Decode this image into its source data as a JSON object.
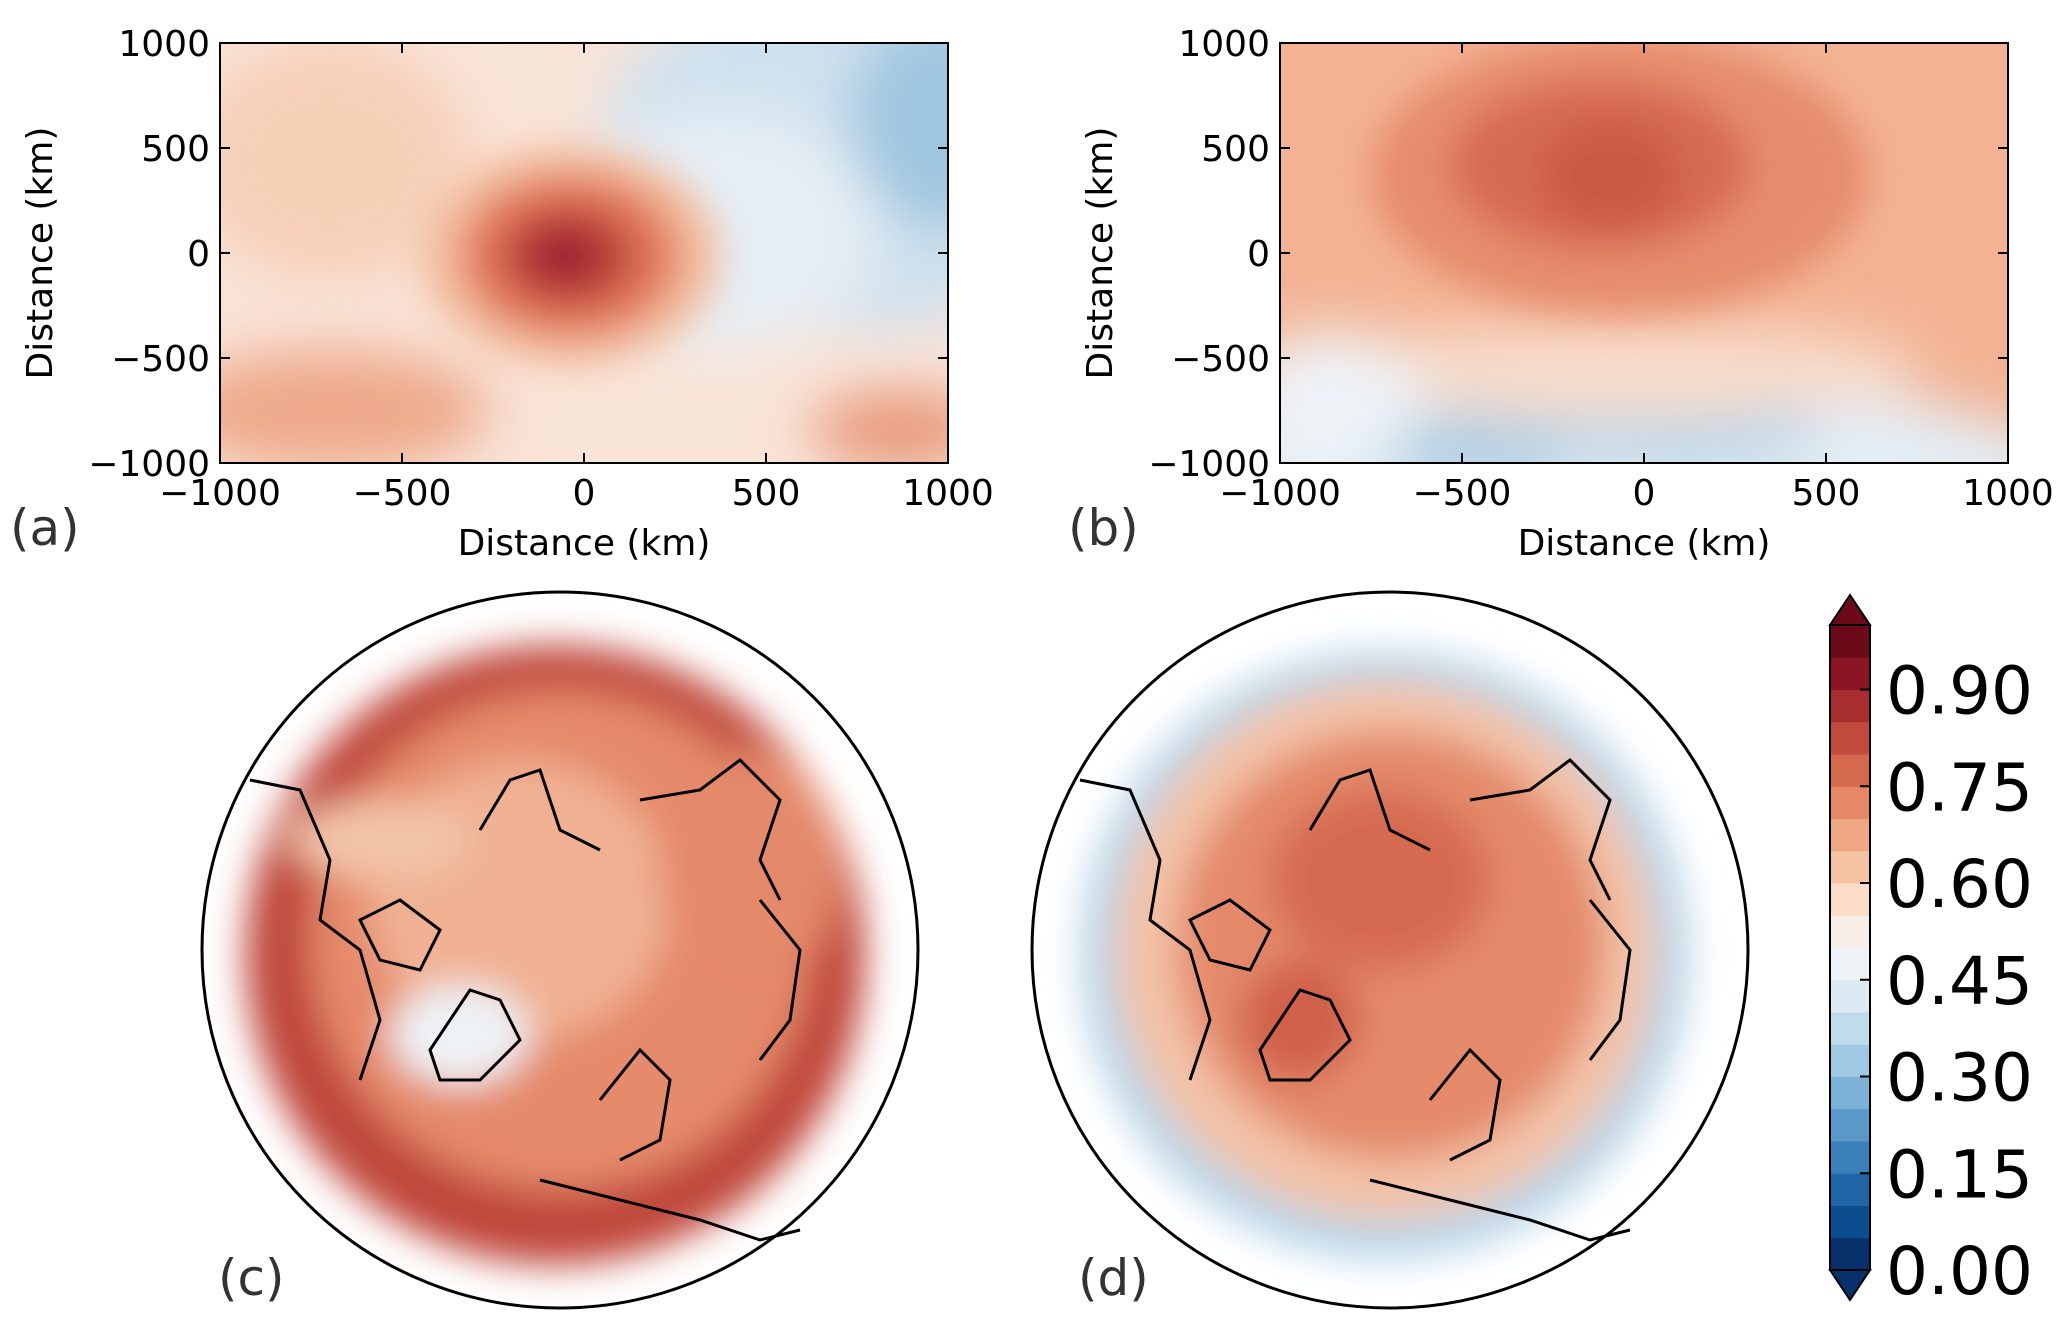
{
  "chart_data": [
    {
      "type": "heatmap",
      "panel_label": "(a)",
      "xlabel": "Distance (km)",
      "ylabel": "Distance (km)",
      "xlim": [
        -1000,
        1000
      ],
      "ylim": [
        -1000,
        1000
      ],
      "xticks": [
        "−1000",
        "−500",
        "0",
        "500",
        "1000"
      ],
      "yticks": [
        "1000",
        "500",
        "0",
        "−500",
        "−1000"
      ],
      "grid": false,
      "pattern": "Strong maximum centered near (-50, 0) km with value above 0.90, ring decreasing outward to about 0.55; weak values (0.40-0.45) toward upper right; moderate 0.60-0.70 along bottom edge",
      "peak": {
        "x": -50,
        "y": 0,
        "value": 0.92
      },
      "approx_range": [
        0.38,
        0.92
      ]
    },
    {
      "type": "heatmap",
      "panel_label": "(b)",
      "xlabel": "Distance (km)",
      "ylabel": "Distance (km)",
      "xlim": [
        -1000,
        1000
      ],
      "ylim": [
        -1000,
        1000
      ],
      "xticks": [
        "−1000",
        "−500",
        "0",
        "500",
        "1000"
      ],
      "yticks": [
        "1000",
        "500",
        "0",
        "−500",
        "−1000"
      ],
      "grid": false,
      "pattern": "Broad maximum around (-150, 300) km with values near 0.78, decreasing to 0.60-0.65 at edges; low values 0.35-0.45 along the bottom",
      "peak": {
        "x": -150,
        "y": 300,
        "value": 0.78
      },
      "approx_range": [
        0.35,
        0.8
      ]
    },
    {
      "type": "heatmap",
      "panel_label": "(c)",
      "projection": "north polar stereographic",
      "pattern": "High values 0.70-0.90 around most of the disk, lowest (about 0.45-0.55) over Greenland and northern Canada",
      "approx_range": [
        0.45,
        0.92
      ]
    },
    {
      "type": "heatmap",
      "panel_label": "(d)",
      "projection": "north polar stereographic",
      "pattern": "Values 0.65-0.80 in the interior, lower 0.35-0.50 along the outer edge of the domain",
      "approx_range": [
        0.3,
        0.82
      ]
    }
  ],
  "colorbar": {
    "ticks": [
      "0.90",
      "0.75",
      "0.60",
      "0.45",
      "0.30",
      "0.15",
      "0.00"
    ],
    "min": 0.0,
    "max": 1.0,
    "extend": "both",
    "cmap": "RdBu_r",
    "colors": [
      "#08306b",
      "#0b4d8f",
      "#1f65a8",
      "#3a7fba",
      "#5a98c9",
      "#7bb2d8",
      "#9fc8e2",
      "#c0dcec",
      "#dbeaf3",
      "#eef3f7",
      "#f8eee8",
      "#fadcc7",
      "#f6c3a3",
      "#efa683",
      "#e48866",
      "#d4694d",
      "#c24a3c",
      "#a82d2f",
      "#8b1425",
      "#6d0a1a"
    ]
  }
}
